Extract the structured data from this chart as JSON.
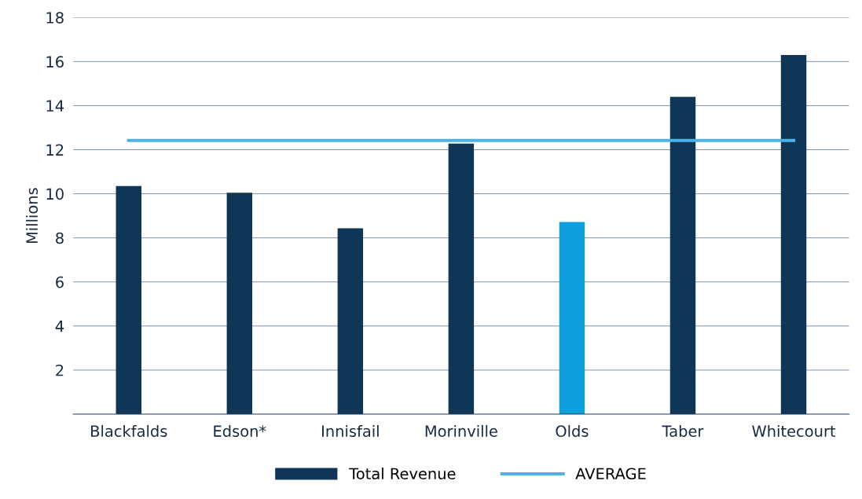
{
  "chart_data": {
    "type": "bar",
    "ylabel": "Millions",
    "categories": [
      "Blackfalds",
      "Edson*",
      "Innisfail",
      "Morinville",
      "Olds",
      "Taber",
      "Whitecourt"
    ],
    "series": [
      {
        "name": "Total Revenue",
        "color": "#0f3557",
        "colors": [
          "#0f3557",
          "#0f3557",
          "#0f3557",
          "#0f3557",
          "#0ea0dc",
          "#0f3557",
          "#0f3557"
        ],
        "values": [
          10.35,
          10.05,
          8.43,
          12.28,
          8.72,
          14.4,
          16.3
        ]
      },
      {
        "name": "AVERAGE",
        "type": "line",
        "color": "#4db3e6",
        "values": [
          12.42,
          12.42,
          12.42,
          12.42,
          12.42,
          12.42,
          12.42
        ]
      }
    ],
    "ylim": [
      0,
      18
    ],
    "yticks": [
      2,
      4,
      6,
      8,
      10,
      12,
      14,
      16,
      18
    ],
    "grid": "y",
    "legend": "bottom",
    "marker": "none",
    "line_style": "solid"
  }
}
